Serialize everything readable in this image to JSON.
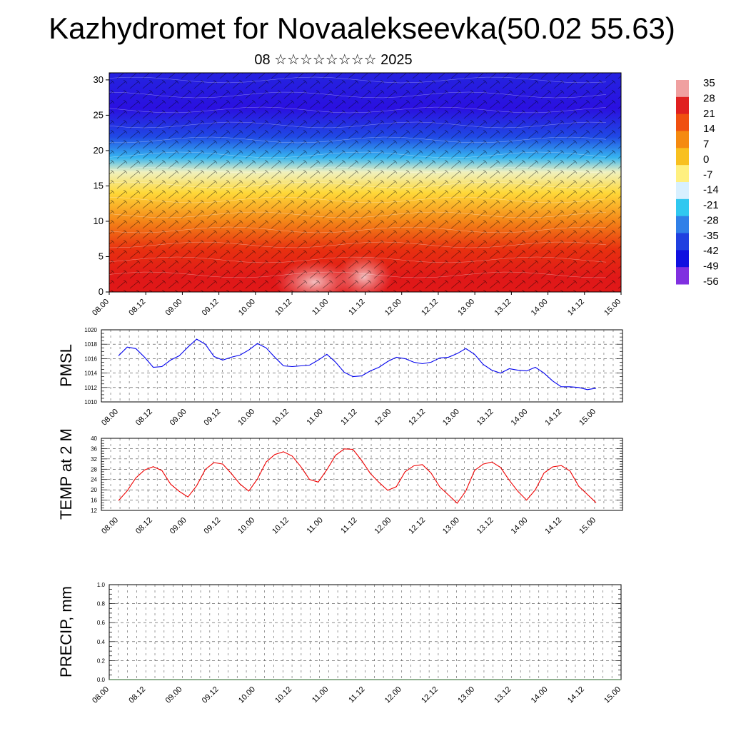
{
  "header": {
    "title": "Kazhydromet for Novaalekseevka(50.02 55.63)",
    "subtitle": "08 ☆☆☆☆☆☆☆☆ 2025"
  },
  "chart_data": [
    {
      "type": "heatmap",
      "title": "",
      "y_ticks": [
        "0",
        "5",
        "10",
        "15",
        "20",
        "25",
        "30"
      ],
      "ylim": [
        0,
        31
      ],
      "x_ticks": [
        "08.00",
        "08.12",
        "09.00",
        "09.12",
        "10.00",
        "10.12",
        "11.00",
        "11.12",
        "12.00",
        "12.12",
        "13.00",
        "13.12",
        "14.00",
        "14.12",
        "15.00"
      ],
      "colorbar": {
        "labels": [
          "35",
          "28",
          "21",
          "14",
          "7",
          "0",
          "-7",
          "-14",
          "-21",
          "-28",
          "-35",
          "-42",
          "-49",
          "-56"
        ],
        "colors": [
          "#f0a0a0",
          "#e02020",
          "#f05010",
          "#f58a10",
          "#f8c020",
          "#fff080",
          "#d8f0ff",
          "#30c8f0",
          "#3080e8",
          "#2040e0",
          "#1010e0",
          "#8030e0"
        ]
      },
      "field_description_levels": [
        {
          "y": 2,
          "value": 30
        },
        {
          "y": 6,
          "value": 24
        },
        {
          "y": 10,
          "value": 12
        },
        {
          "y": 14,
          "value": 0
        },
        {
          "y": 17,
          "value": -10
        },
        {
          "y": 19,
          "value": -25
        },
        {
          "y": 22,
          "value": -40
        },
        {
          "y": 26,
          "value": -55
        },
        {
          "y": 30,
          "value": -50
        }
      ],
      "wind_barbs": true
    },
    {
      "type": "line",
      "ylabel": "PMSL",
      "ylim": [
        1010,
        1020
      ],
      "y_ticks": [
        "1010",
        "1012",
        "1014",
        "1016",
        "1018",
        "1020"
      ],
      "x_ticks": [
        "08.00",
        "08.12",
        "09.00",
        "09.12",
        "10.00",
        "10.12",
        "11.00",
        "11.12",
        "12.00",
        "12.12",
        "13.00",
        "13.12",
        "14.00",
        "14.12",
        "15.00"
      ],
      "x_step_hours": 3,
      "color": "#0000ee",
      "values": [
        1016.4,
        1017.6,
        1017.4,
        1016.2,
        1014.8,
        1014.9,
        1015.8,
        1016.4,
        1017.6,
        1018.7,
        1018.0,
        1016.3,
        1015.8,
        1016.2,
        1016.5,
        1017.2,
        1018.1,
        1017.5,
        1016.2,
        1015.0,
        1014.9,
        1015.0,
        1015.1,
        1015.8,
        1016.6,
        1015.5,
        1014.1,
        1013.5,
        1013.6,
        1014.3,
        1014.8,
        1015.6,
        1016.2,
        1016.0,
        1015.5,
        1015.3,
        1015.5,
        1016.1,
        1016.2,
        1016.7,
        1017.4,
        1016.6,
        1015.2,
        1014.4,
        1014.0,
        1014.6,
        1014.4,
        1014.3,
        1014.8,
        1014.0,
        1012.9,
        1012.1,
        1012.1,
        1012.0,
        1011.7,
        1011.9
      ]
    },
    {
      "type": "line",
      "ylabel": "TEMP at 2 M",
      "ylim": [
        12,
        40
      ],
      "y_ticks": [
        "12",
        "16",
        "20",
        "24",
        "28",
        "32",
        "36",
        "40"
      ],
      "x_ticks": [
        "08.00",
        "08.12",
        "09.00",
        "09.12",
        "10.00",
        "10.12",
        "11.00",
        "11.12",
        "12.00",
        "12.12",
        "13.00",
        "13.12",
        "14.00",
        "14.12",
        "15.00"
      ],
      "x_step_hours": 3,
      "color": "#ee0000",
      "values": [
        15.8,
        19.6,
        24.6,
        27.7,
        29.0,
        27.5,
        22.2,
        19.4,
        17.2,
        21.6,
        27.9,
        30.6,
        30.0,
        26.3,
        22.2,
        19.5,
        24.2,
        30.8,
        33.7,
        34.8,
        33.1,
        29.0,
        24.0,
        23.0,
        27.8,
        33.4,
        35.9,
        35.7,
        31.4,
        26.4,
        22.9,
        19.8,
        21.2,
        27.0,
        29.3,
        29.8,
        26.5,
        21.1,
        18.0,
        14.8,
        19.5,
        27.5,
        30.0,
        30.8,
        28.7,
        23.7,
        19.4,
        16.0,
        20.0,
        26.5,
        28.9,
        29.4,
        27.3,
        21.4,
        18.2,
        15.0
      ]
    },
    {
      "type": "line",
      "ylabel": "PRECIP, mm",
      "ylim": [
        0,
        1
      ],
      "y_ticks": [
        "0.0",
        "0.2",
        "0.4",
        "0.6",
        "0.8",
        "1.0"
      ],
      "x_ticks": [
        "08.00",
        "08.12",
        "09.00",
        "09.12",
        "10.00",
        "10.12",
        "11.00",
        "11.12",
        "12.00",
        "12.12",
        "13.00",
        "13.12",
        "14.00",
        "14.12",
        "15.00"
      ],
      "color": "#206020",
      "values": [
        0,
        0,
        0,
        0,
        0,
        0,
        0,
        0,
        0,
        0,
        0,
        0,
        0,
        0,
        0
      ]
    }
  ]
}
